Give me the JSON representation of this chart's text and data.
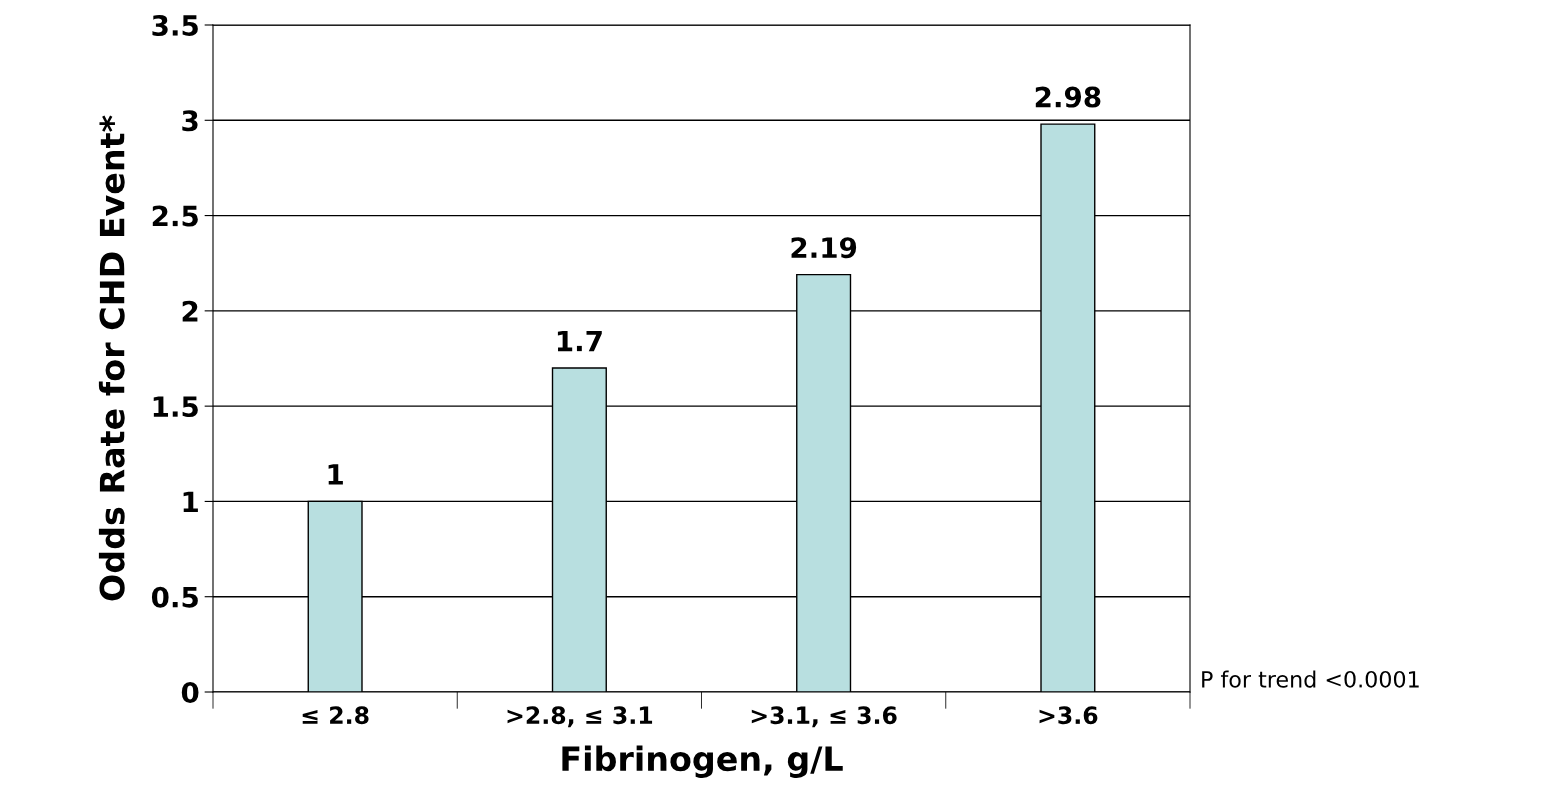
{
  "chart_data": {
    "type": "bar",
    "xlabel": "Fibrinogen, g/L",
    "ylabel": "Odds Rate for CHD Event*",
    "categories": [
      "≤ 2.8",
      ">2.8, ≤ 3.1",
      ">3.1, ≤ 3.6",
      ">3.6"
    ],
    "values": [
      1,
      1.7,
      2.19,
      2.98
    ],
    "color": "#b8dfe0",
    "ylim": [
      0,
      3.5
    ],
    "yticks": [
      0,
      0.5,
      1,
      1.5,
      2,
      2.5,
      3,
      3.5
    ],
    "grid": "y",
    "data_labels": true,
    "annotations": [
      "P for trend <0.0001"
    ]
  }
}
